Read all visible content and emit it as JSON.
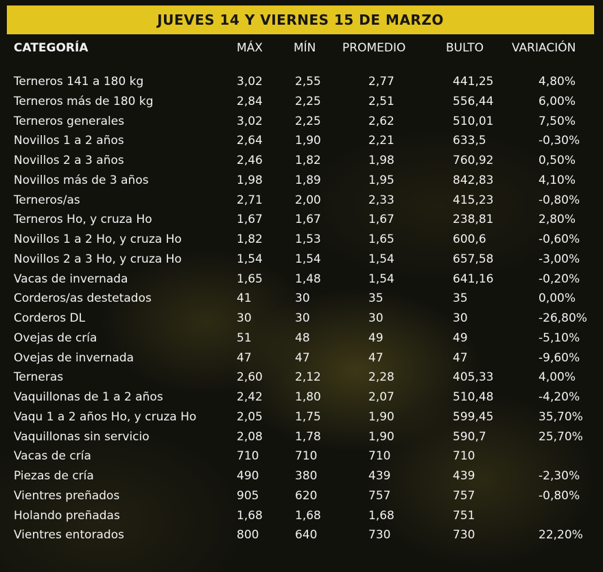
{
  "title": "JUEVES 14 Y VIERNES 15 DE MARZO",
  "columns": [
    "CATEGORÍA",
    "MÁX",
    "MÍN",
    "PROMEDIO",
    "BULTO",
    "VARIACIÓN"
  ],
  "rows": [
    [
      "Terneros 141 a 180 kg",
      "3,02",
      "2,55",
      "2,77",
      "441,25",
      "4,80%"
    ],
    [
      "Terneros más de 180 kg",
      "2,84",
      "2,25",
      "2,51",
      "556,44",
      "6,00%"
    ],
    [
      "Terneros generales",
      "3,02",
      "2,25",
      "2,62",
      "510,01",
      "7,50%"
    ],
    [
      "Novillos 1 a 2 años",
      "2,64",
      "1,90",
      "2,21",
      "633,5",
      "-0,30%"
    ],
    [
      "Novillos 2 a 3 años",
      "2,46",
      "1,82",
      "1,98",
      "760,92",
      "0,50%"
    ],
    [
      "Novillos más de 3 años",
      "1,98",
      "1,89",
      "1,95",
      "842,83",
      "4,10%"
    ],
    [
      "Terneros/as",
      "2,71",
      "2,00",
      "2,33",
      "415,23",
      "-0,80%"
    ],
    [
      "Terneros Ho, y cruza Ho",
      "1,67",
      "1,67",
      "1,67",
      "238,81",
      "2,80%"
    ],
    [
      "Novillos 1 a 2 Ho, y cruza Ho",
      "1,82",
      "1,53",
      "1,65",
      "600,6",
      "-0,60%"
    ],
    [
      "Novillos 2 a 3 Ho, y cruza Ho",
      "1,54",
      "1,54",
      "1,54",
      "657,58",
      "-3,00%"
    ],
    [
      "Vacas de invernada",
      "1,65",
      "1,48",
      "1,54",
      "641,16",
      "-0,20%"
    ],
    [
      "Corderos/as destetados",
      "41",
      "30",
      "35",
      "35",
      "0,00%"
    ],
    [
      "Corderos DL",
      "30",
      "30",
      "30",
      "30",
      "-26,80%"
    ],
    [
      "Ovejas de cría",
      "51",
      "48",
      "49",
      "49",
      "-5,10%"
    ],
    [
      "Ovejas de invernada",
      "47",
      "47",
      "47",
      "47",
      "-9,60%"
    ],
    [
      "Terneras",
      "2,60",
      "2,12",
      "2,28",
      "405,33",
      "4,00%"
    ],
    [
      "Vaquillonas de 1 a 2 años",
      "2,42",
      "1,80",
      "2,07",
      "510,48",
      "-4,20%"
    ],
    [
      "Vaqu 1 a 2 años Ho, y cruza Ho",
      "2,05",
      "1,75",
      "1,90",
      "599,45",
      "35,70%"
    ],
    [
      "Vaquillonas sin servicio",
      "2,08",
      "1,78",
      "1,90",
      "590,7",
      "25,70%"
    ],
    [
      "Vacas de cría",
      "710",
      "710",
      "710",
      "710",
      ""
    ],
    [
      "Piezas de cría",
      "490",
      "380",
      "439",
      "439",
      "-2,30%"
    ],
    [
      "Vientres preñados",
      "905",
      "620",
      "757",
      "757",
      "-0,80%"
    ],
    [
      "Holando preñadas",
      "1,68",
      "1,68",
      "1,68",
      "751",
      ""
    ],
    [
      "Vientres entorados",
      "800",
      "640",
      "730",
      "730",
      "22,20%"
    ]
  ],
  "colors": {
    "accent": "#e3c51f",
    "text": "#f2f2f2",
    "background": "#12120d"
  }
}
